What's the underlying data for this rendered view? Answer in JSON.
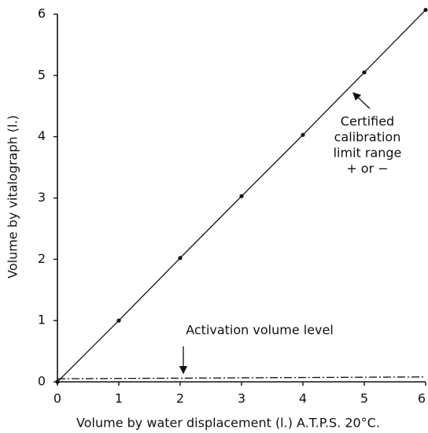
{
  "chart_data": {
    "type": "line",
    "x_label": "Volume by water displacement (l.) A.T.P.S. 20°C.",
    "y_label": "Volume by vitalograph (l.)",
    "xlim": [
      0,
      6
    ],
    "ylim": [
      0,
      6
    ],
    "xticks": [
      0,
      1,
      2,
      3,
      4,
      5,
      6
    ],
    "yticks": [
      0,
      1,
      2,
      3,
      4,
      5,
      6
    ],
    "series": [
      {
        "color": "#111111",
        "style": "solid",
        "markers": true,
        "x": [
          0,
          1,
          2,
          3,
          4,
          5,
          6
        ],
        "values": [
          0,
          1,
          2.02,
          3.03,
          4.03,
          5.05,
          6.07
        ]
      },
      {
        "color": "#111111",
        "style": "dashdot",
        "markers": false,
        "x": [
          0,
          6
        ],
        "values": [
          0.05,
          0.08
        ]
      }
    ],
    "annotations": [
      {
        "lines": [
          "Activation volume level"
        ]
      },
      {
        "lines": [
          "Certified",
          "calibration",
          "limit range",
          "+ or −"
        ]
      }
    ]
  }
}
